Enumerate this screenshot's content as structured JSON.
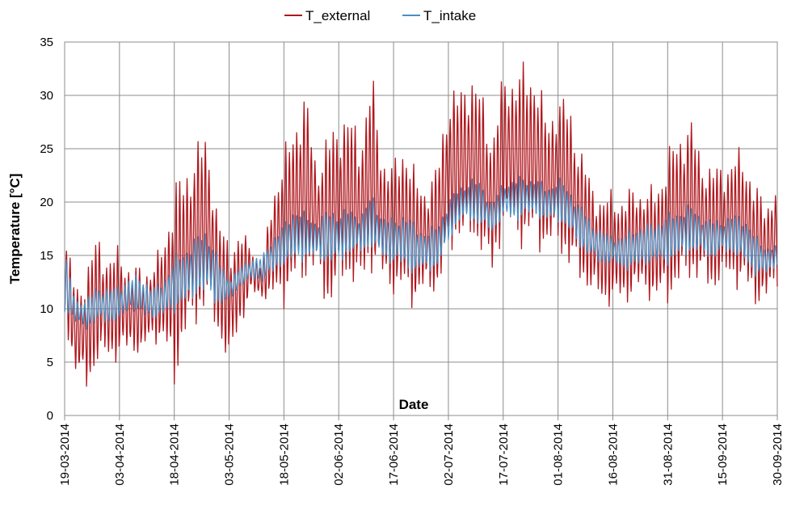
{
  "chart_data": {
    "type": "line",
    "xlabel": "Date",
    "ylabel": "Temperature [°C]",
    "ylim": [
      0,
      35
    ],
    "yticks": [
      0,
      5,
      10,
      15,
      20,
      25,
      30,
      35
    ],
    "xlim": [
      "2014-03-19",
      "2014-09-30"
    ],
    "xtick_labels": [
      "19-03-2014",
      "03-04-2014",
      "18-04-2014",
      "03-05-2014",
      "18-05-2014",
      "02-06-2014",
      "17-06-2014",
      "02-07-2014",
      "17-07-2014",
      "01-08-2014",
      "16-08-2014",
      "31-08-2014",
      "15-09-2014",
      "30-09-2014"
    ],
    "grid": true,
    "legend_position": "top-center",
    "series": [
      {
        "name": "T_external",
        "color": "#B0181E",
        "x": [
          "2014-03-19",
          "2014-03-22",
          "2014-03-25",
          "2014-03-28",
          "2014-03-31",
          "2014-04-03",
          "2014-04-06",
          "2014-04-09",
          "2014-04-12",
          "2014-04-15",
          "2014-04-18",
          "2014-04-21",
          "2014-04-24",
          "2014-04-27",
          "2014-04-30",
          "2014-05-03",
          "2014-05-06",
          "2014-05-09",
          "2014-05-12",
          "2014-05-15",
          "2014-05-18",
          "2014-05-21",
          "2014-05-24",
          "2014-05-27",
          "2014-05-30",
          "2014-06-02",
          "2014-06-05",
          "2014-06-08",
          "2014-06-11",
          "2014-06-14",
          "2014-06-17",
          "2014-06-20",
          "2014-06-23",
          "2014-06-26",
          "2014-06-29",
          "2014-07-02",
          "2014-07-05",
          "2014-07-08",
          "2014-07-11",
          "2014-07-14",
          "2014-07-17",
          "2014-07-20",
          "2014-07-23",
          "2014-07-26",
          "2014-07-29",
          "2014-08-01",
          "2014-08-04",
          "2014-08-07",
          "2014-08-10",
          "2014-08-13",
          "2014-08-16",
          "2014-08-19",
          "2014-08-22",
          "2014-08-25",
          "2014-08-28",
          "2014-08-31",
          "2014-09-03",
          "2014-09-06",
          "2014-09-09",
          "2014-09-12",
          "2014-09-15",
          "2014-09-18",
          "2014-09-21",
          "2014-09-24",
          "2014-09-27",
          "2014-09-30"
        ],
        "min": [
          8.5,
          3.5,
          2.0,
          4.0,
          5.0,
          4.5,
          6.0,
          5.0,
          7.0,
          6.0,
          2.0,
          6.0,
          8.0,
          9.0,
          7.0,
          4.0,
          8.0,
          11.0,
          11.0,
          10.0,
          10.0,
          11.0,
          12.0,
          13.0,
          9.0,
          11.0,
          12.0,
          11.0,
          13.0,
          12.0,
          11.0,
          10.0,
          10.0,
          11.0,
          11.0,
          14.0,
          16.0,
          15.0,
          15.0,
          12.0,
          17.0,
          16.0,
          15.0,
          15.0,
          15.0,
          15.0,
          13.0,
          12.0,
          11.0,
          10.0,
          10.0,
          10.0,
          11.0,
          11.0,
          10.0,
          10.0,
          11.0,
          12.0,
          12.0,
          11.0,
          12.0,
          12.0,
          11.0,
          10.0,
          10.0,
          12.0
        ],
        "max": [
          17.5,
          12.5,
          14.0,
          18.0,
          15.0,
          16.5,
          14.0,
          14.5,
          14.0,
          17.0,
          22.5,
          24.0,
          26.0,
          27.5,
          19.0,
          17.0,
          17.5,
          16.5,
          14.0,
          22.0,
          25.0,
          29.0,
          31.0,
          24.0,
          27.0,
          29.0,
          29.0,
          27.0,
          33.0,
          25.0,
          24.0,
          27.0,
          23.0,
          22.0,
          24.0,
          31.5,
          31.0,
          33.5,
          31.0,
          27.0,
          32.5,
          33.0,
          33.5,
          33.5,
          28.0,
          31.0,
          30.0,
          26.0,
          22.5,
          21.0,
          21.5,
          21.0,
          22.0,
          21.5,
          22.0,
          25.5,
          27.0,
          29.0,
          25.0,
          24.0,
          24.0,
          25.0,
          25.5,
          22.0,
          20.5,
          22.5
        ]
      },
      {
        "name": "T_intake",
        "color": "#4A8FC4",
        "x": [
          "2014-03-19",
          "2014-03-22",
          "2014-03-25",
          "2014-03-28",
          "2014-03-31",
          "2014-04-03",
          "2014-04-06",
          "2014-04-09",
          "2014-04-12",
          "2014-04-15",
          "2014-04-18",
          "2014-04-21",
          "2014-04-24",
          "2014-04-27",
          "2014-04-30",
          "2014-05-03",
          "2014-05-06",
          "2014-05-09",
          "2014-05-12",
          "2014-05-15",
          "2014-05-18",
          "2014-05-21",
          "2014-05-24",
          "2014-05-27",
          "2014-05-30",
          "2014-06-02",
          "2014-06-05",
          "2014-06-08",
          "2014-06-11",
          "2014-06-14",
          "2014-06-17",
          "2014-06-20",
          "2014-06-23",
          "2014-06-26",
          "2014-06-29",
          "2014-07-02",
          "2014-07-05",
          "2014-07-08",
          "2014-07-11",
          "2014-07-14",
          "2014-07-17",
          "2014-07-20",
          "2014-07-23",
          "2014-07-26",
          "2014-07-29",
          "2014-08-01",
          "2014-08-04",
          "2014-08-07",
          "2014-08-10",
          "2014-08-13",
          "2014-08-16",
          "2014-08-19",
          "2014-08-22",
          "2014-08-25",
          "2014-08-28",
          "2014-08-31",
          "2014-09-03",
          "2014-09-06",
          "2014-09-09",
          "2014-09-12",
          "2014-09-15",
          "2014-09-18",
          "2014-09-21",
          "2014-09-24",
          "2014-09-27",
          "2014-09-30"
        ],
        "min": [
          9.5,
          8.5,
          8.0,
          8.5,
          8.5,
          8.5,
          10.0,
          9.0,
          9.0,
          9.0,
          9.5,
          10.0,
          11.0,
          11.0,
          10.0,
          10.5,
          12.0,
          12.5,
          12.5,
          13.0,
          14.0,
          14.0,
          14.5,
          14.5,
          14.0,
          14.0,
          15.0,
          15.0,
          15.5,
          14.5,
          14.0,
          13.5,
          13.0,
          13.5,
          13.5,
          16.0,
          18.0,
          18.0,
          17.5,
          17.0,
          18.5,
          18.0,
          18.5,
          18.5,
          18.0,
          18.0,
          17.0,
          15.5,
          14.5,
          14.0,
          14.0,
          13.5,
          13.5,
          14.0,
          14.0,
          14.0,
          14.5,
          15.0,
          15.0,
          14.5,
          15.0,
          15.0,
          14.0,
          13.0,
          13.0,
          14.0
        ],
        "max": [
          15.5,
          11.0,
          11.0,
          12.5,
          12.0,
          12.5,
          13.0,
          13.5,
          12.0,
          13.0,
          15.0,
          16.0,
          17.0,
          18.0,
          15.0,
          13.0,
          14.0,
          15.0,
          15.0,
          17.0,
          18.0,
          20.0,
          19.0,
          18.5,
          19.5,
          19.5,
          19.5,
          19.0,
          21.0,
          19.0,
          18.5,
          19.5,
          18.0,
          17.5,
          18.0,
          20.5,
          21.5,
          22.5,
          22.0,
          20.0,
          22.0,
          22.5,
          22.5,
          22.5,
          21.5,
          22.5,
          21.5,
          20.0,
          18.5,
          17.5,
          17.0,
          17.0,
          18.0,
          18.0,
          18.5,
          19.0,
          19.5,
          20.0,
          19.0,
          18.5,
          18.5,
          19.0,
          19.0,
          17.0,
          16.0,
          16.0
        ]
      }
    ]
  }
}
